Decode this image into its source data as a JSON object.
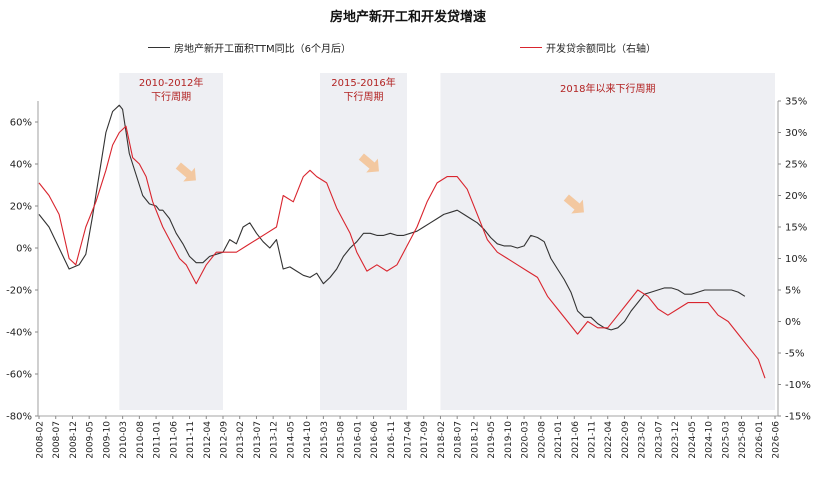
{
  "chart_data": {
    "type": "line",
    "title": "房地产新开工和开发贷增速",
    "x_ticks": [
      "2008-02",
      "2008-07",
      "2008-12",
      "2009-05",
      "2009-10",
      "2010-03",
      "2010-08",
      "2011-01",
      "2011-06",
      "2011-11",
      "2012-04",
      "2012-09",
      "2013-02",
      "2013-07",
      "2013-12",
      "2014-05",
      "2014-10",
      "2015-03",
      "2015-08",
      "2016-01",
      "2016-06",
      "2016-11",
      "2017-04",
      "2017-09",
      "2018-02",
      "2018-07",
      "2018-12",
      "2019-05",
      "2019-10",
      "2020-03",
      "2020-08",
      "2021-01",
      "2021-06",
      "2021-11",
      "2022-04",
      "2022-09",
      "2023-02",
      "2023-07",
      "2023-12",
      "2024-05",
      "2024-10",
      "2025-03",
      "2025-08",
      "2026-01",
      "2026-06"
    ],
    "y_left": {
      "ticks": [
        "60%",
        "40%",
        "20%",
        "0%",
        "-20%",
        "-40%",
        "-60%",
        "-80%"
      ],
      "range": [
        -80,
        70
      ]
    },
    "y_right": {
      "ticks": [
        "35%",
        "30%",
        "25%",
        "20%",
        "15%",
        "10%",
        "5%",
        "0%",
        "-5%",
        "-10%",
        "-15%"
      ],
      "range": [
        -15,
        35
      ]
    },
    "shaded_periods": [
      {
        "label_lines": [
          "2010-2012年",
          "下行周期"
        ],
        "start": "2010-02",
        "end": "2012-09"
      },
      {
        "label_lines": [
          "2015-2016年",
          "下行周期"
        ],
        "start": "2015-02",
        "end": "2017-04"
      },
      {
        "label_lines": [
          "2018年以来下行周期"
        ],
        "start": "2018-02",
        "end": "2026-06"
      }
    ],
    "series": [
      {
        "name": "房地产新开工面积TTM同比（6个月后）",
        "axis": "left",
        "color": "#333333",
        "points": [
          [
            "2008-02",
            16
          ],
          [
            "2008-05",
            10
          ],
          [
            "2008-08",
            0
          ],
          [
            "2008-11",
            -10
          ],
          [
            "2009-02",
            -8
          ],
          [
            "2009-04",
            -3
          ],
          [
            "2009-06",
            15
          ],
          [
            "2009-08",
            35
          ],
          [
            "2009-10",
            55
          ],
          [
            "2009-12",
            65
          ],
          [
            "2010-02",
            68
          ],
          [
            "2010-03",
            66
          ],
          [
            "2010-05",
            45
          ],
          [
            "2010-07",
            35
          ],
          [
            "2010-09",
            25
          ],
          [
            "2010-11",
            21
          ],
          [
            "2011-01",
            20
          ],
          [
            "2011-02",
            18
          ],
          [
            "2011-03",
            18
          ],
          [
            "2011-05",
            14
          ],
          [
            "2011-07",
            7
          ],
          [
            "2011-09",
            2
          ],
          [
            "2011-11",
            -4
          ],
          [
            "2012-01",
            -7
          ],
          [
            "2012-03",
            -7
          ],
          [
            "2012-05",
            -4
          ],
          [
            "2012-07",
            -3
          ],
          [
            "2012-09",
            -2
          ],
          [
            "2012-11",
            4
          ],
          [
            "2013-01",
            2
          ],
          [
            "2013-03",
            10
          ],
          [
            "2013-05",
            12
          ],
          [
            "2013-07",
            7
          ],
          [
            "2013-09",
            3
          ],
          [
            "2013-11",
            0
          ],
          [
            "2014-01",
            4
          ],
          [
            "2014-03",
            -10
          ],
          [
            "2014-05",
            -9
          ],
          [
            "2014-07",
            -11
          ],
          [
            "2014-09",
            -13
          ],
          [
            "2014-11",
            -14
          ],
          [
            "2015-01",
            -12
          ],
          [
            "2015-03",
            -17
          ],
          [
            "2015-05",
            -14
          ],
          [
            "2015-07",
            -10
          ],
          [
            "2015-09",
            -4
          ],
          [
            "2015-11",
            0
          ],
          [
            "2016-01",
            3
          ],
          [
            "2016-03",
            7
          ],
          [
            "2016-05",
            7
          ],
          [
            "2016-07",
            6
          ],
          [
            "2016-09",
            6
          ],
          [
            "2016-11",
            7
          ],
          [
            "2017-01",
            6
          ],
          [
            "2017-03",
            6
          ],
          [
            "2017-05",
            7
          ],
          [
            "2017-07",
            8
          ],
          [
            "2017-09",
            10
          ],
          [
            "2017-11",
            12
          ],
          [
            "2018-01",
            14
          ],
          [
            "2018-03",
            16
          ],
          [
            "2018-05",
            17
          ],
          [
            "2018-07",
            18
          ],
          [
            "2018-09",
            16
          ],
          [
            "2018-11",
            14
          ],
          [
            "2019-01",
            12
          ],
          [
            "2019-03",
            9
          ],
          [
            "2019-05",
            5
          ],
          [
            "2019-07",
            2
          ],
          [
            "2019-09",
            1
          ],
          [
            "2019-11",
            1
          ],
          [
            "2020-01",
            0
          ],
          [
            "2020-03",
            1
          ],
          [
            "2020-05",
            6
          ],
          [
            "2020-07",
            5
          ],
          [
            "2020-09",
            3
          ],
          [
            "2020-11",
            -5
          ],
          [
            "2021-01",
            -10
          ],
          [
            "2021-03",
            -15
          ],
          [
            "2021-05",
            -21
          ],
          [
            "2021-07",
            -30
          ],
          [
            "2021-09",
            -33
          ],
          [
            "2021-11",
            -33
          ],
          [
            "2022-01",
            -36
          ],
          [
            "2022-03",
            -38
          ],
          [
            "2022-05",
            -39
          ],
          [
            "2022-07",
            -38
          ],
          [
            "2022-09",
            -35
          ],
          [
            "2022-11",
            -30
          ],
          [
            "2023-01",
            -26
          ],
          [
            "2023-03",
            -22
          ],
          [
            "2023-05",
            -21
          ],
          [
            "2023-07",
            -20
          ],
          [
            "2023-09",
            -19
          ],
          [
            "2023-11",
            -19
          ],
          [
            "2024-01",
            -20
          ],
          [
            "2024-03",
            -22
          ],
          [
            "2024-05",
            -22
          ],
          [
            "2024-07",
            -21
          ],
          [
            "2024-09",
            -20
          ],
          [
            "2024-11",
            -20
          ],
          [
            "2025-01",
            -20
          ],
          [
            "2025-03",
            -20
          ],
          [
            "2025-05",
            -20
          ],
          [
            "2025-07",
            -21
          ],
          [
            "2025-09",
            -23
          ]
        ]
      },
      {
        "name": "开发贷余额同比（右轴）",
        "axis": "right",
        "color": "#d9252e",
        "points": [
          [
            "2008-02",
            22
          ],
          [
            "2008-05",
            20
          ],
          [
            "2008-08",
            17
          ],
          [
            "2008-11",
            10
          ],
          [
            "2009-01",
            9
          ],
          [
            "2009-04",
            15
          ],
          [
            "2009-07",
            19
          ],
          [
            "2009-10",
            24
          ],
          [
            "2009-12",
            28
          ],
          [
            "2010-02",
            30
          ],
          [
            "2010-04",
            31
          ],
          [
            "2010-06",
            26
          ],
          [
            "2010-08",
            25
          ],
          [
            "2010-10",
            23
          ],
          [
            "2010-12",
            19
          ],
          [
            "2011-03",
            15
          ],
          [
            "2011-06",
            12
          ],
          [
            "2011-08",
            10
          ],
          [
            "2011-10",
            9
          ],
          [
            "2012-01",
            6
          ],
          [
            "2012-04",
            9
          ],
          [
            "2012-07",
            11
          ],
          [
            "2012-10",
            11
          ],
          [
            "2013-01",
            11
          ],
          [
            "2013-04",
            12
          ],
          [
            "2013-07",
            13
          ],
          [
            "2013-10",
            14
          ],
          [
            "2014-01",
            15
          ],
          [
            "2014-03",
            20
          ],
          [
            "2014-06",
            19
          ],
          [
            "2014-09",
            23
          ],
          [
            "2014-11",
            24
          ],
          [
            "2015-01",
            23
          ],
          [
            "2015-04",
            22
          ],
          [
            "2015-07",
            18
          ],
          [
            "2015-09",
            16
          ],
          [
            "2015-11",
            14
          ],
          [
            "2016-01",
            11
          ],
          [
            "2016-04",
            8
          ],
          [
            "2016-07",
            9
          ],
          [
            "2016-10",
            8
          ],
          [
            "2017-01",
            9
          ],
          [
            "2017-04",
            12
          ],
          [
            "2017-07",
            15
          ],
          [
            "2017-10",
            19
          ],
          [
            "2018-01",
            22
          ],
          [
            "2018-04",
            23
          ],
          [
            "2018-07",
            23
          ],
          [
            "2018-10",
            21
          ],
          [
            "2019-01",
            17
          ],
          [
            "2019-04",
            13
          ],
          [
            "2019-07",
            11
          ],
          [
            "2019-10",
            10
          ],
          [
            "2020-01",
            9
          ],
          [
            "2020-04",
            8
          ],
          [
            "2020-07",
            7
          ],
          [
            "2020-10",
            4
          ],
          [
            "2021-01",
            2
          ],
          [
            "2021-04",
            0
          ],
          [
            "2021-07",
            -2
          ],
          [
            "2021-10",
            0
          ],
          [
            "2022-01",
            -1
          ],
          [
            "2022-04",
            -1
          ],
          [
            "2022-07",
            1
          ],
          [
            "2022-10",
            3
          ],
          [
            "2023-01",
            5
          ],
          [
            "2023-04",
            4
          ],
          [
            "2023-07",
            2
          ],
          [
            "2023-10",
            1
          ],
          [
            "2024-01",
            2
          ],
          [
            "2024-04",
            3
          ],
          [
            "2024-07",
            3
          ],
          [
            "2024-10",
            3
          ],
          [
            "2025-01",
            1
          ],
          [
            "2025-04",
            0
          ],
          [
            "2025-07",
            -2
          ],
          [
            "2025-10",
            -4
          ],
          [
            "2026-01",
            -6
          ],
          [
            "2026-03",
            -9
          ]
        ]
      }
    ]
  }
}
